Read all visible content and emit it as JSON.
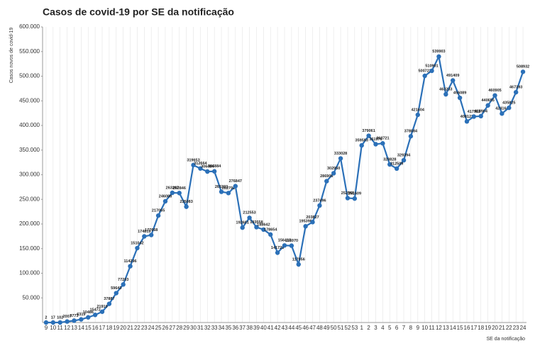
{
  "chart_data": {
    "type": "line",
    "title": "Casos de covid-19 por SE da notificação",
    "y_label": "Casos novos de covid-19",
    "x_label": "SE da notificação",
    "categories": [
      "9",
      "10",
      "11",
      "12",
      "13",
      "14",
      "15",
      "16",
      "17",
      "18",
      "19",
      "20",
      "21",
      "22",
      "23",
      "24",
      "25",
      "26",
      "27",
      "28",
      "29",
      "30",
      "31",
      "32",
      "33",
      "34",
      "35",
      "36",
      "37",
      "38",
      "39",
      "40",
      "41",
      "42",
      "43",
      "44",
      "45",
      "46",
      "47",
      "48",
      "49",
      "50",
      "51",
      "52",
      "53",
      "1",
      "2",
      "3",
      "4",
      "5",
      "6",
      "7",
      "8",
      "9",
      "10",
      "11",
      "12",
      "13",
      "14",
      "15",
      "16",
      "17",
      "18",
      "19",
      "20",
      "21",
      "22",
      "23",
      "24"
    ],
    "series": [
      {
        "name": "Casos",
        "color": "#2b70b8",
        "values": [
          2,
          17,
          102,
          2007,
          3773,
          6319,
          10486,
          15472,
          21910,
          37887,
          59643,
          77203,
          114296,
          151042,
          174819,
          177668,
          217065,
          246088,
          263297,
          262846,
          235083,
          319653,
          312664,
          306484,
          306884,
          265393,
          262791,
          276847,
          192601,
          212553,
          193558,
          188642,
          178654,
          141723,
          156413,
          155970,
          117956,
          195398,
          203827,
          237496,
          286905,
          302950,
          333028,
          252566,
          251609,
          359593,
          379061,
          361976,
          363721,
          320828,
          312509,
          329394,
          378084,
          421604,
          500722,
          510901,
          539903,
          463233,
          491409,
          456089,
          408122,
          417983,
          418904,
          440655,
          460905,
          424164,
          435825,
          467393,
          508932
        ]
      }
    ],
    "ylim": [
      0,
      600000
    ],
    "yticks": [
      {
        "value": 50000,
        "label": "50.000"
      },
      {
        "value": 100000,
        "label": "100.000"
      },
      {
        "value": 150000,
        "label": "150.000"
      },
      {
        "value": 200000,
        "label": "200.000"
      },
      {
        "value": 250000,
        "label": "250.000"
      },
      {
        "value": 300000,
        "label": "300.000"
      },
      {
        "value": 350000,
        "label": "350.000"
      },
      {
        "value": 400000,
        "label": "400.000"
      },
      {
        "value": 450000,
        "label": "450.000"
      },
      {
        "value": 500000,
        "label": "500.000"
      },
      {
        "value": 550000,
        "label": "550.000"
      },
      {
        "value": 600000,
        "label": "600.000"
      }
    ],
    "grid": true
  }
}
